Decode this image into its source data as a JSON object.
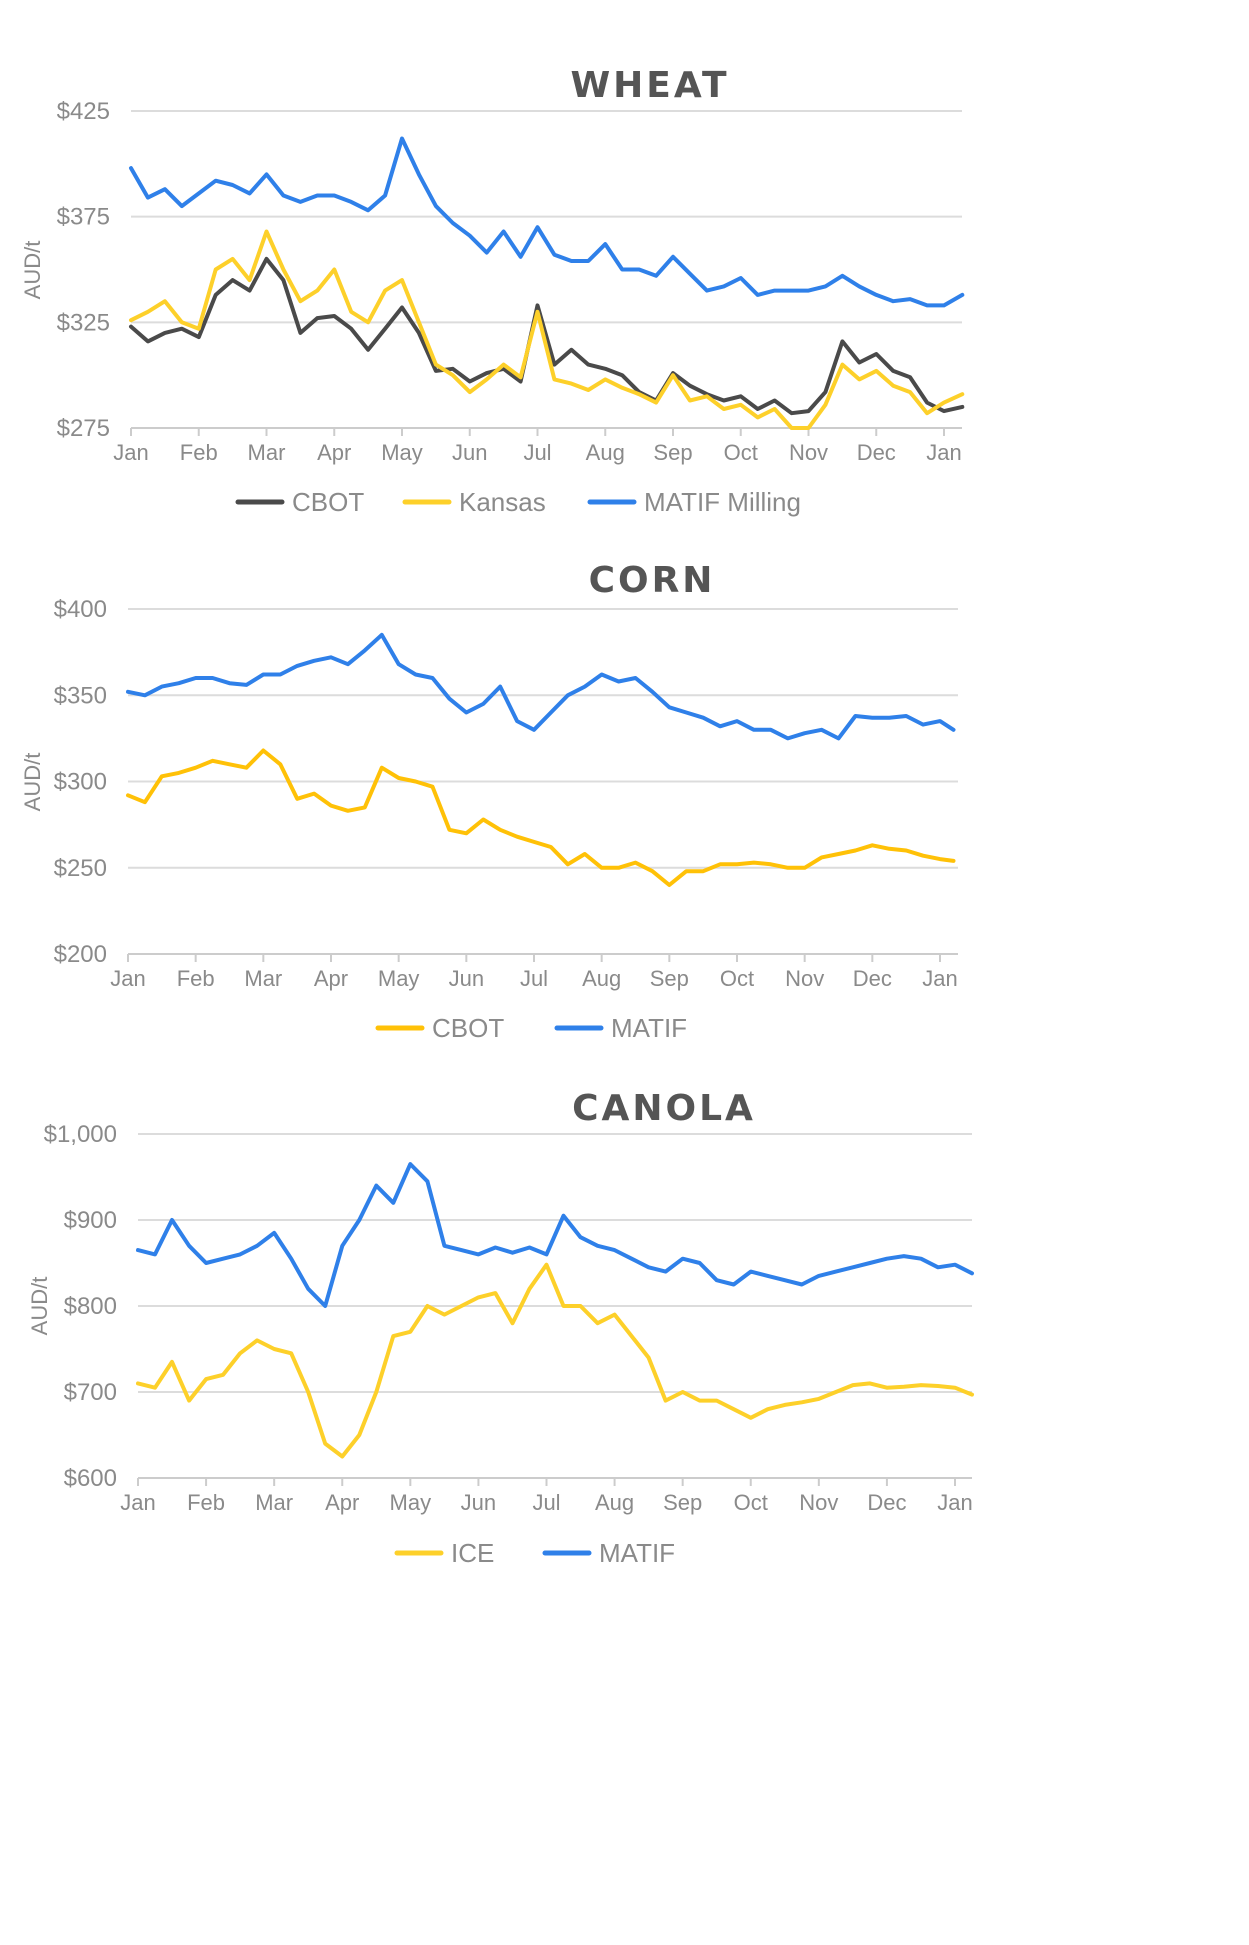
{
  "chart_data": [
    {
      "type": "line",
      "title": "WHEAT",
      "xlabel": "",
      "ylabel": "AUD/t",
      "ylim": [
        275,
        425
      ],
      "yticks": [
        "$425",
        "$375",
        "$325",
        "$275"
      ],
      "ytick_values": [
        425,
        375,
        325,
        275
      ],
      "categories": [
        "Jan",
        "Feb",
        "Mar",
        "Apr",
        "May",
        "Jun",
        "Jul",
        "Aug",
        "Sep",
        "Oct",
        "Nov",
        "Dec",
        "Jan"
      ],
      "grid": true,
      "legend_position": "bottom",
      "x_months": [
        0,
        0.25,
        0.5,
        0.75,
        1,
        1.25,
        1.5,
        1.75,
        2,
        2.25,
        2.5,
        2.75,
        3,
        3.25,
        3.5,
        3.75,
        4,
        4.25,
        4.5,
        4.75,
        5,
        5.25,
        5.5,
        5.75,
        6,
        6.25,
        6.5,
        6.75,
        7,
        7.25,
        7.5,
        7.75,
        8,
        8.25,
        8.5,
        8.75,
        9,
        9.25,
        9.5,
        9.75,
        10,
        10.25,
        10.5,
        10.75,
        11,
        11.25,
        11.5,
        11.75,
        12,
        12.27
      ],
      "series": [
        {
          "name": "CBOT",
          "color": "#4a4a4a",
          "values": [
            323,
            316,
            320,
            322,
            318,
            338,
            345,
            340,
            355,
            345,
            320,
            327,
            328,
            322,
            312,
            322,
            332,
            320,
            302,
            303,
            297,
            301,
            303,
            297,
            333,
            305,
            312,
            305,
            303,
            300,
            292,
            288,
            301,
            295,
            291,
            288,
            290,
            284,
            288,
            282,
            283,
            292,
            316,
            306,
            310,
            302,
            299,
            287,
            283,
            285
          ]
        },
        {
          "name": "Kansas",
          "color": "#fdd02a",
          "values": [
            326,
            330,
            335,
            325,
            322,
            350,
            355,
            345,
            368,
            350,
            335,
            340,
            350,
            330,
            325,
            340,
            345,
            325,
            305,
            300,
            292,
            298,
            305,
            299,
            330,
            298,
            296,
            293,
            298,
            294,
            291,
            287,
            300,
            288,
            290,
            284,
            286,
            280,
            284,
            275,
            275,
            286,
            305,
            298,
            302,
            295,
            292,
            282,
            287,
            291
          ]
        },
        {
          "name": "MATIF Milling",
          "color": "#2f80e9",
          "values": [
            398,
            384,
            388,
            380,
            386,
            392,
            390,
            386,
            395,
            385,
            382,
            385,
            385,
            382,
            378,
            385,
            412,
            395,
            380,
            372,
            366,
            358,
            368,
            356,
            370,
            357,
            354,
            354,
            362,
            350,
            350,
            347,
            356,
            348,
            340,
            342,
            346,
            338,
            340,
            340,
            340,
            342,
            347,
            342,
            338,
            335,
            336,
            333,
            333,
            338
          ]
        }
      ]
    },
    {
      "type": "line",
      "title": "CORN",
      "xlabel": "",
      "ylabel": "AUD/t",
      "ylim": [
        200,
        400
      ],
      "yticks": [
        "$400",
        "$350",
        "$300",
        "$250",
        "$200"
      ],
      "ytick_values": [
        400,
        350,
        300,
        250,
        200
      ],
      "categories": [
        "Jan",
        "Feb",
        "Mar",
        "Apr",
        "May",
        "Jun",
        "Jul",
        "Aug",
        "Sep",
        "Oct",
        "Nov",
        "Dec",
        "Jan"
      ],
      "grid": true,
      "legend_position": "bottom",
      "x_months": [
        0,
        0.25,
        0.5,
        0.75,
        1,
        1.25,
        1.5,
        1.75,
        2,
        2.25,
        2.5,
        2.75,
        3,
        3.25,
        3.5,
        3.75,
        4,
        4.25,
        4.5,
        4.75,
        5,
        5.25,
        5.5,
        5.75,
        6,
        6.25,
        6.5,
        6.75,
        7,
        7.25,
        7.5,
        7.75,
        8,
        8.25,
        8.5,
        8.75,
        9,
        9.25,
        9.5,
        9.75,
        10,
        10.25,
        10.5,
        10.75,
        11,
        11.25,
        11.5,
        11.75,
        12,
        12.2
      ],
      "series": [
        {
          "name": "CBOT",
          "color": "#ffc107",
          "values": [
            292,
            288,
            303,
            305,
            308,
            312,
            310,
            308,
            318,
            310,
            290,
            293,
            286,
            283,
            285,
            308,
            302,
            300,
            297,
            272,
            270,
            278,
            272,
            268,
            265,
            262,
            252,
            258,
            250,
            250,
            253,
            248,
            240,
            248,
            248,
            252,
            252,
            253,
            252,
            250,
            250,
            256,
            258,
            260,
            263,
            261,
            260,
            257,
            255,
            254
          ]
        },
        {
          "name": "MATIF",
          "color": "#2f80e9",
          "values": [
            352,
            350,
            355,
            357,
            360,
            360,
            357,
            356,
            362,
            362,
            367,
            370,
            372,
            368,
            376,
            385,
            368,
            362,
            360,
            348,
            340,
            345,
            355,
            335,
            330,
            340,
            350,
            355,
            362,
            358,
            360,
            352,
            343,
            340,
            337,
            332,
            335,
            330,
            330,
            325,
            328,
            330,
            325,
            338,
            337,
            337,
            338,
            333,
            335,
            330
          ]
        }
      ]
    },
    {
      "type": "line",
      "title": "CANOLA",
      "xlabel": "",
      "ylabel": "AUD/t",
      "ylim": [
        600,
        1000
      ],
      "yticks": [
        "$1,000",
        "$900",
        "$800",
        "$700",
        "$600"
      ],
      "ytick_values": [
        1000,
        900,
        800,
        700,
        600
      ],
      "categories": [
        "Jan",
        "Feb",
        "Mar",
        "Apr",
        "May",
        "Jun",
        "Jul",
        "Aug",
        "Sep",
        "Oct",
        "Nov",
        "Dec",
        "Jan"
      ],
      "grid": true,
      "legend_position": "bottom",
      "x_months": [
        0,
        0.25,
        0.5,
        0.75,
        1,
        1.25,
        1.5,
        1.75,
        2,
        2.25,
        2.5,
        2.75,
        3,
        3.25,
        3.5,
        3.75,
        4,
        4.25,
        4.5,
        4.75,
        5,
        5.25,
        5.5,
        5.75,
        6,
        6.25,
        6.5,
        6.75,
        7,
        7.25,
        7.5,
        7.75,
        8,
        8.25,
        8.5,
        8.75,
        9,
        9.25,
        9.5,
        9.75,
        10,
        10.25,
        10.5,
        10.75,
        11,
        11.25,
        11.5,
        11.75,
        12,
        12.25
      ],
      "series": [
        {
          "name": "ICE",
          "color": "#fdd02a",
          "values": [
            710,
            705,
            735,
            690,
            715,
            720,
            745,
            760,
            750,
            745,
            700,
            640,
            625,
            650,
            700,
            765,
            770,
            800,
            790,
            800,
            810,
            815,
            780,
            820,
            848,
            800,
            800,
            780,
            790,
            765,
            740,
            690,
            700,
            690,
            690,
            680,
            670,
            680,
            685,
            688,
            692,
            700,
            708,
            710,
            705,
            706,
            708,
            707,
            705,
            697
          ]
        },
        {
          "name": "MATIF",
          "color": "#2f80e9",
          "values": [
            865,
            860,
            900,
            870,
            850,
            855,
            860,
            870,
            885,
            855,
            820,
            800,
            870,
            900,
            940,
            920,
            965,
            945,
            870,
            865,
            860,
            868,
            862,
            868,
            860,
            905,
            880,
            870,
            865,
            855,
            845,
            840,
            855,
            850,
            830,
            825,
            840,
            835,
            830,
            825,
            835,
            840,
            845,
            850,
            855,
            858,
            855,
            845,
            848,
            838
          ]
        }
      ]
    }
  ],
  "charts": [
    {
      "title": "WHEAT",
      "ylabel": "AUD/t",
      "legend": [
        {
          "label": "CBOT",
          "color": "#4a4a4a"
        },
        {
          "label": "Kansas",
          "color": "#fdd02a"
        },
        {
          "label": "MATIF Milling",
          "color": "#2f80e9"
        }
      ]
    },
    {
      "title": "CORN",
      "ylabel": "AUD/t",
      "legend": [
        {
          "label": "CBOT",
          "color": "#ffc107"
        },
        {
          "label": "MATIF",
          "color": "#2f80e9"
        }
      ]
    },
    {
      "title": "CANOLA",
      "ylabel": "AUD/t",
      "legend": [
        {
          "label": "ICE",
          "color": "#fdd02a"
        },
        {
          "label": "MATIF",
          "color": "#2f80e9"
        }
      ]
    }
  ]
}
